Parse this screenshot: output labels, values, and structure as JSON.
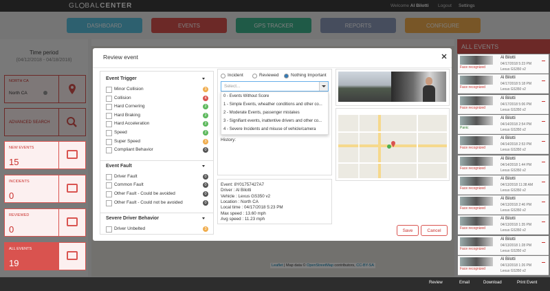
{
  "header": {
    "brand_1": "GL",
    "brand_2": "BAL",
    "brand_3": "CENTER",
    "welcome": "Welcome",
    "user": "Al Bilotti",
    "logout": "Logout",
    "settings": "Settings"
  },
  "nav": [
    "DASHBOARD",
    "EVENTS",
    "GPS TRACKER",
    "REPORTS",
    "CONFIGURE"
  ],
  "sidebar": {
    "time_period": "Time period",
    "range": "(04/12/2018 - 04/18/2018)",
    "region_label": "NORTH CA",
    "region_value": "North CA",
    "advanced_search": "ADVANCED SEARCH",
    "tiles": [
      {
        "label": "NEW EVENTS",
        "count": 15
      },
      {
        "label": "INCIDENTS",
        "count": 0
      },
      {
        "label": "REVIEWED",
        "count": 0
      },
      {
        "label": "ALL EVENTS",
        "count": 19
      }
    ]
  },
  "events_panel": {
    "title": "ALL EVENTS",
    "items": [
      {
        "name": "Al Bilotti",
        "time": "04/17/2018 5:23 PM",
        "vehicle": "Lexus GS350 v2",
        "tag": "Face recognized"
      },
      {
        "name": "Al Bilotti",
        "time": "04/17/2018 5:18 PM",
        "vehicle": "Lexus GS350 v2",
        "tag": "Face recognized"
      },
      {
        "name": "Al Bilotti",
        "time": "04/17/2018 5:06 PM",
        "vehicle": "Lexus GS350 v2",
        "tag": "Face recognized"
      },
      {
        "name": "Al Bilotti",
        "time": "04/14/2018 2:54 PM",
        "vehicle": "Lexus GS350 v2",
        "tag": "Panic"
      },
      {
        "name": "Al Bilotti",
        "time": "04/14/2018 2:53 PM",
        "vehicle": "Lexus GS350 v2",
        "tag": "Face recognized"
      },
      {
        "name": "Al Bilotti",
        "time": "04/14/2018 1:44 PM",
        "vehicle": "Lexus GS350 v2",
        "tag": "Face recognized"
      },
      {
        "name": "Al Bilotti",
        "time": "04/13/2018 11:38 AM",
        "vehicle": "Lexus GS350 v2",
        "tag": "Face recognized"
      },
      {
        "name": "Al Bilotti",
        "time": "04/13/2018 2:46 PM",
        "vehicle": "Lexus GS350 v2",
        "tag": "Face recognized"
      },
      {
        "name": "Al Bilotti",
        "time": "04/13/2018 1:35 PM",
        "vehicle": "Lexus GS350 v2",
        "tag": "Face recognized"
      },
      {
        "name": "Al Bilotti",
        "time": "04/13/2018 1:28 PM",
        "vehicle": "Lexus GS350 v2",
        "tag": "Face recognized"
      },
      {
        "name": "Al Bilotti",
        "time": "04/13/2018 1:26 PM",
        "vehicle": "Lexus GS350 v2",
        "tag": "Face recognized"
      }
    ]
  },
  "modal": {
    "title": "Review event",
    "groups": [
      {
        "title": "Event Trigger",
        "items": [
          {
            "label": "Minor Collision",
            "count": 3,
            "color": "#f0ad4e"
          },
          {
            "label": "Collision",
            "count": 4,
            "color": "#d9534f"
          },
          {
            "label": "Hard Cornering",
            "count": 2,
            "color": "#5cb85c"
          },
          {
            "label": "Hard Braking",
            "count": 2,
            "color": "#5cb85c"
          },
          {
            "label": "Hard Acceleration",
            "count": 2,
            "color": "#5cb85c"
          },
          {
            "label": "Speed",
            "count": 2,
            "color": "#5cb85c"
          },
          {
            "label": "Super Speed",
            "count": 3,
            "color": "#f0ad4e"
          },
          {
            "label": "Compliant Behavior",
            "count": 0,
            "color": "#555555"
          }
        ]
      },
      {
        "title": "Event Fault",
        "items": [
          {
            "label": "Driver Fault",
            "count": 0,
            "color": "#555555"
          },
          {
            "label": "Common Fault",
            "count": 0,
            "color": "#555555"
          },
          {
            "label": "Other Fault - Could be avoided",
            "count": 0,
            "color": "#555555"
          },
          {
            "label": "Other Fault - Could not be avoided",
            "count": 0,
            "color": "#555555"
          }
        ]
      },
      {
        "title": "Severe Driver Behavior",
        "items": [
          {
            "label": "Driver Unbelted",
            "count": 3,
            "color": "#f0ad4e"
          }
        ]
      }
    ],
    "radios": [
      "Incident",
      "Reviewed",
      "Nothing Important"
    ],
    "select_placeholder": "Select...",
    "options": [
      "0 - Events Without Score",
      "1 - Simple Events, wheather conditions and other co...",
      "2 - Moderate Events, passenger mistakes",
      "3 - Signifiant events, inattentive drivers and other co...",
      "4 - Severe Incidents and misuse of vehicle/camera"
    ],
    "history": "History:",
    "details": [
      "Event: 8Y01757427A7",
      "Driver : Al Bilotti",
      "Vehicle : Lexus GS350 v2",
      "Location : North CA",
      "Local time : 04/17/2018 5:23 PM",
      "Max speed : 13.60 mph",
      "Avg speed : 11.23 mph"
    ],
    "save": "Save",
    "cancel": "Cancel"
  },
  "map_attribution": {
    "leaflet": "Leaflet",
    "text": "| Map data ©",
    "osm": "OpenStreetMap",
    "contrib": "contributors,",
    "license": "CC-BY-SA"
  },
  "footer": [
    "Review",
    "Email",
    "Download",
    "Print Event"
  ]
}
